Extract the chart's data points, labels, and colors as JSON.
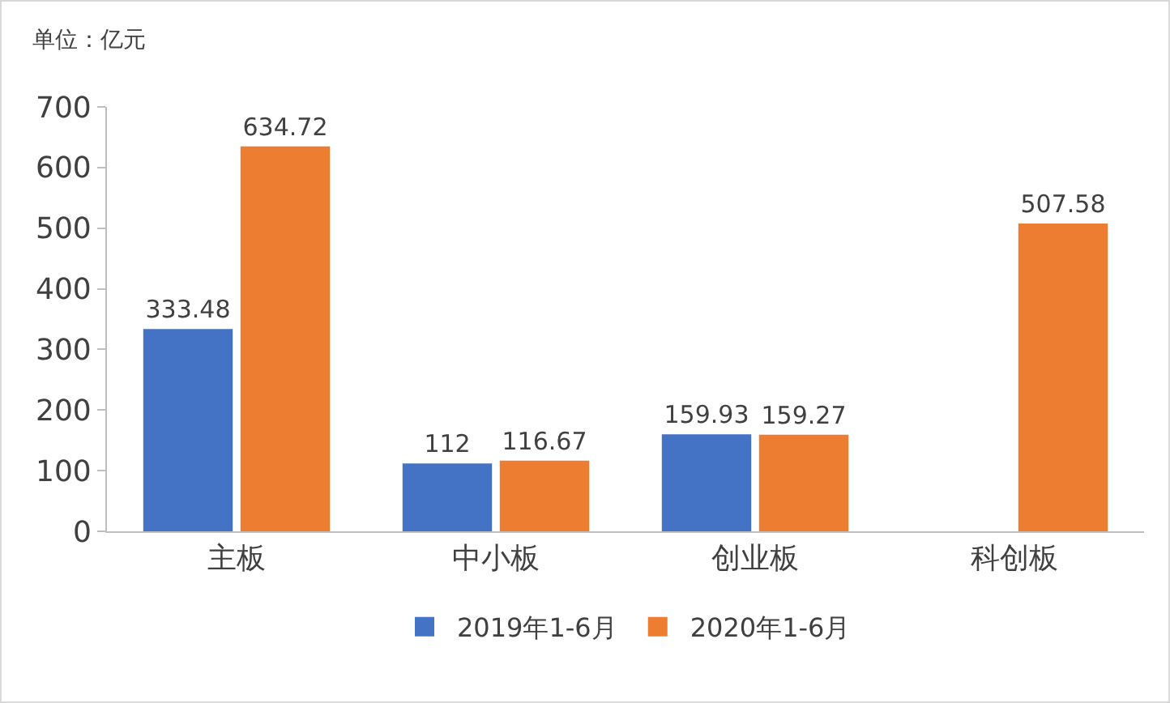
{
  "chart_data": {
    "type": "bar",
    "annotations": [
      "单位：亿元"
    ],
    "categories": [
      "主板",
      "中小板",
      "创业板",
      "科创板"
    ],
    "series": [
      {
        "name": "2019年1-6月",
        "color": "#4472c4",
        "values": [
          333.48,
          112,
          159.93,
          null
        ]
      },
      {
        "name": "2020年1-6月",
        "color": "#ed7d31",
        "values": [
          634.72,
          116.67,
          159.27,
          507.58
        ]
      }
    ],
    "ylim": [
      0,
      700
    ],
    "yticks": [
      0,
      100,
      200,
      300,
      400,
      500,
      600,
      700
    ],
    "grid": false,
    "legend": "bottom",
    "data_labels": true
  }
}
